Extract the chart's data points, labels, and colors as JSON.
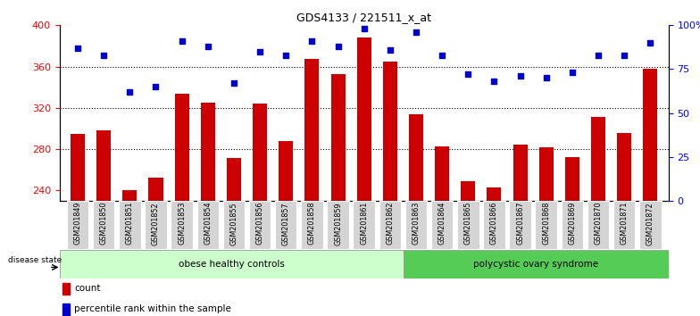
{
  "title": "GDS4133 / 221511_x_at",
  "samples": [
    "GSM201849",
    "GSM201850",
    "GSM201851",
    "GSM201852",
    "GSM201853",
    "GSM201854",
    "GSM201855",
    "GSM201856",
    "GSM201857",
    "GSM201858",
    "GSM201859",
    "GSM201861",
    "GSM201862",
    "GSM201863",
    "GSM201864",
    "GSM201865",
    "GSM201866",
    "GSM201867",
    "GSM201868",
    "GSM201869",
    "GSM201870",
    "GSM201871",
    "GSM201872"
  ],
  "counts": [
    295,
    298,
    240,
    252,
    334,
    325,
    271,
    324,
    288,
    367,
    353,
    388,
    365,
    314,
    283,
    249,
    243,
    284,
    282,
    272,
    311,
    296,
    358
  ],
  "percentiles": [
    87,
    83,
    62,
    65,
    91,
    88,
    67,
    85,
    83,
    91,
    88,
    98,
    86,
    96,
    83,
    72,
    68,
    71,
    70,
    73,
    83,
    83,
    90
  ],
  "group1_label": "obese healthy controls",
  "group1_count": 13,
  "group2_label": "polycystic ovary syndrome",
  "group2_count": 10,
  "disease_state_label": "disease state",
  "bar_color": "#cc0000",
  "dot_color": "#0000cc",
  "ylim_left": [
    230,
    400
  ],
  "ylim_right": [
    0,
    100
  ],
  "yticks_left": [
    240,
    280,
    320,
    360,
    400
  ],
  "yticks_right": [
    0,
    25,
    50,
    75,
    100
  ],
  "grid_values": [
    280,
    320,
    360
  ],
  "legend_count_label": "count",
  "legend_percentile_label": "percentile rank within the sample",
  "background_color": "#ffffff",
  "group1_bg": "#ccffcc",
  "group2_bg": "#55cc55",
  "tick_area_bg": "#d4d4d4",
  "bar_bottom": 230
}
